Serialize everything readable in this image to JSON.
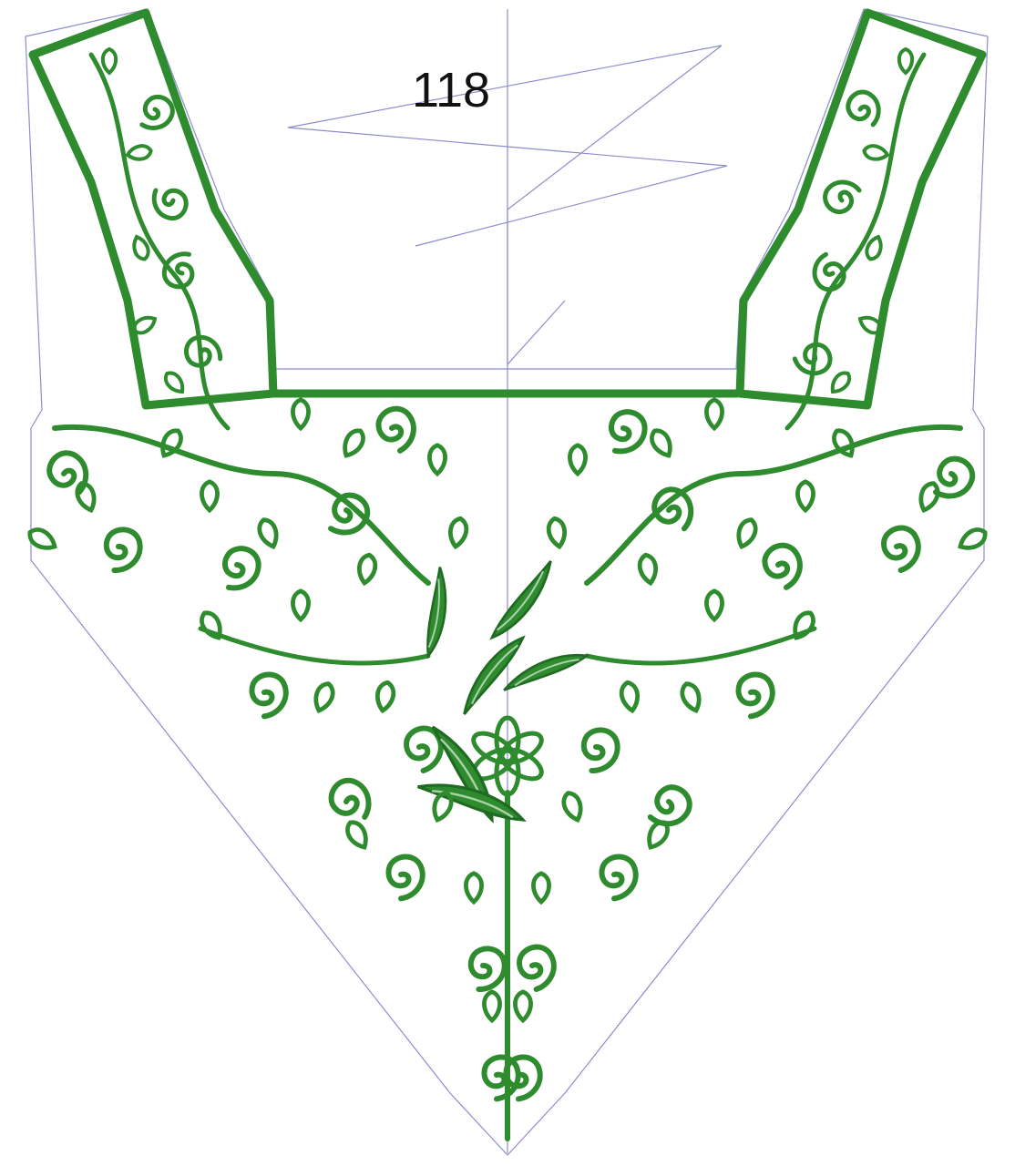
{
  "design": {
    "number_label": "118"
  },
  "colors": {
    "thread_green": "#2e8b2e",
    "thread_dark": "#1f6b22",
    "thread_highlight": "#4fb04f",
    "outline_blue": "#8c8ccf"
  },
  "motif_icons": {
    "scroll": "spiral-scroll-icon",
    "leaf": "leaf-icon",
    "teardrop": "teardrop-loop-icon",
    "flower": "flower-icon"
  }
}
